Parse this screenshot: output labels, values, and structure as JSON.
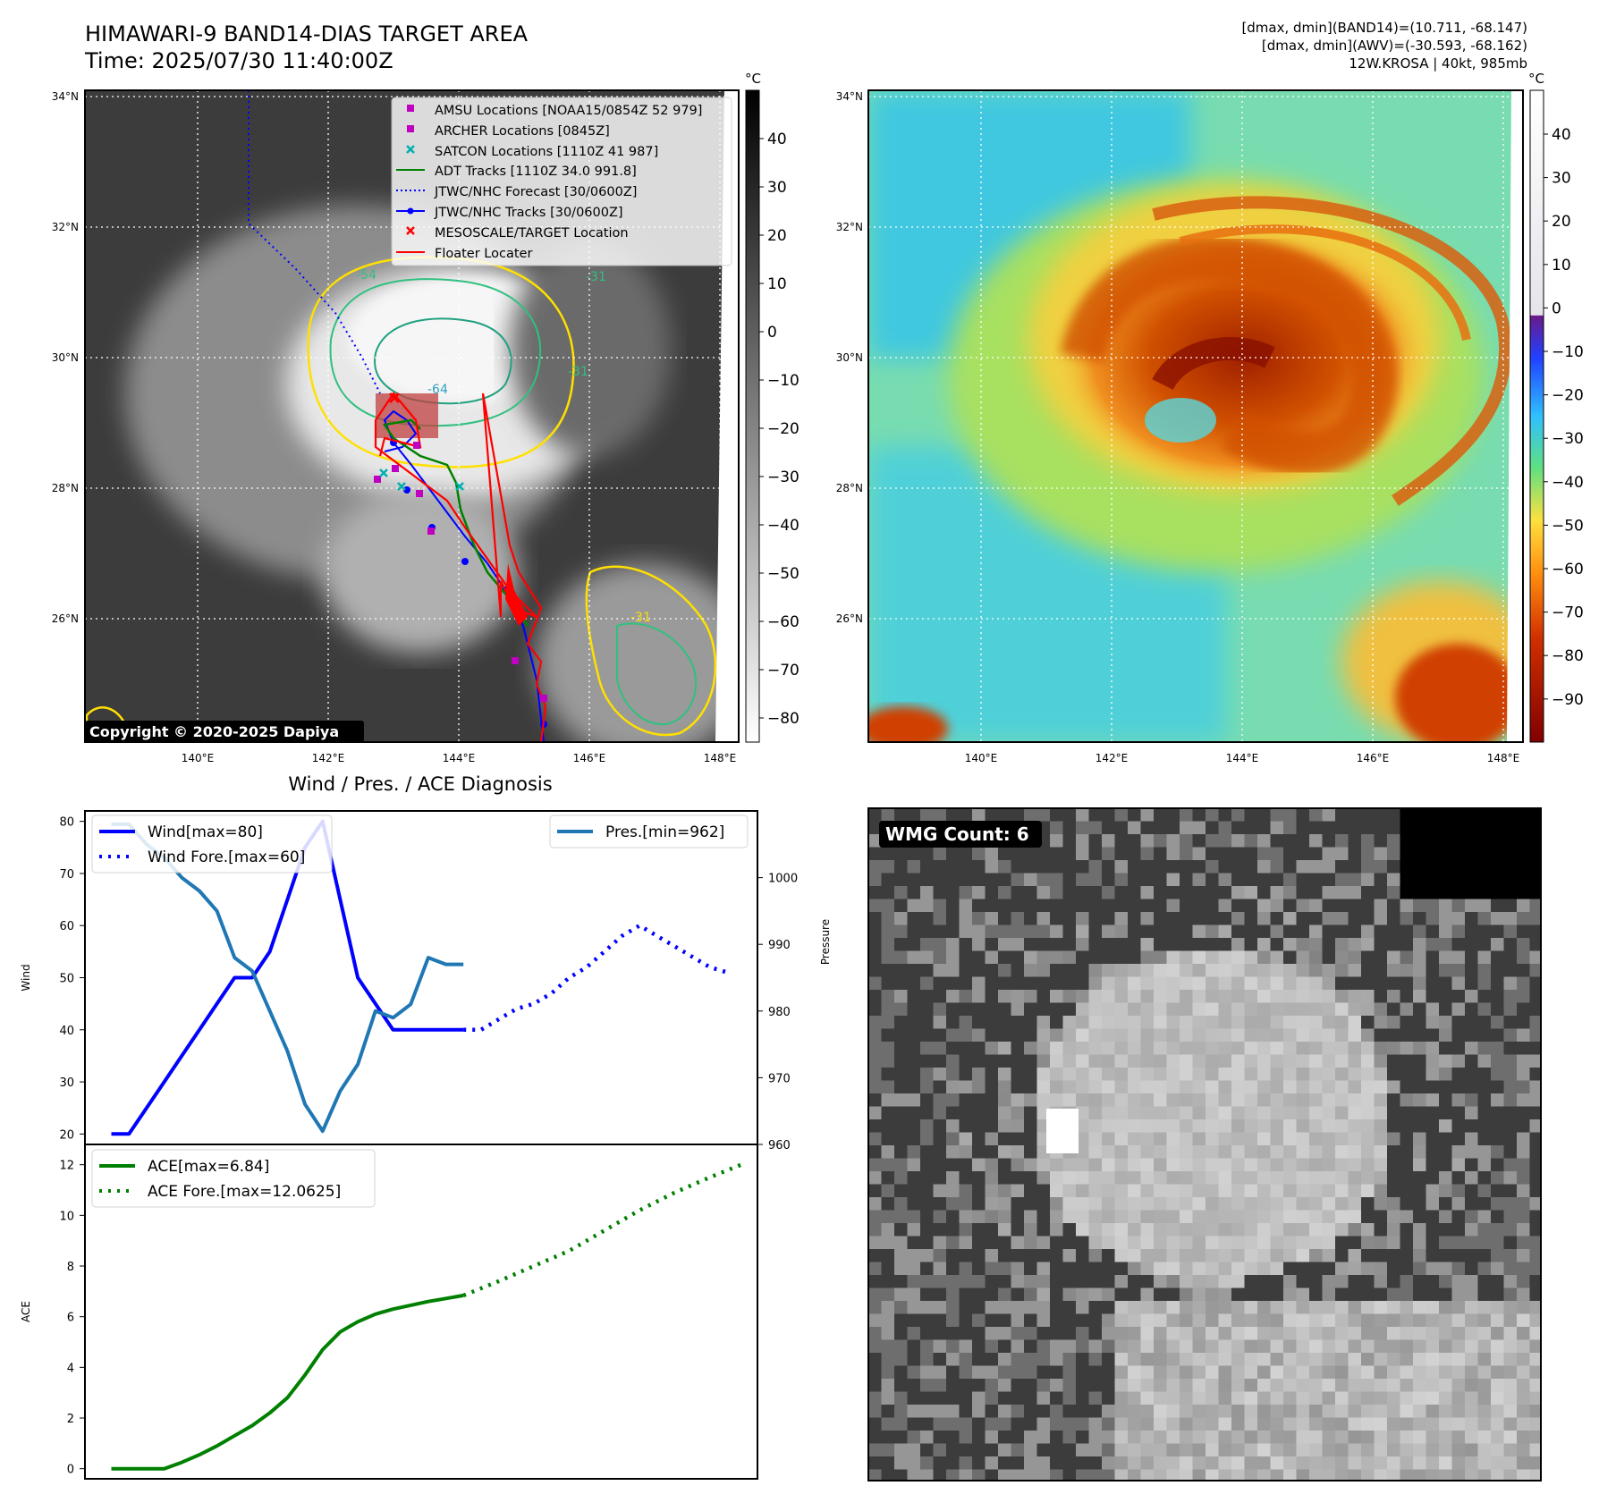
{
  "header": {
    "title_line1": "HIMAWARI-9 BAND14-DIAS TARGET AREA",
    "title_line2": "Time: 2025/07/30 11:40:00Z",
    "stats_line1": "[dmax, dmin](BAND14)=(10.711, -68.147)",
    "stats_line2": "[dmax, dmin](AWV)=(-30.593, -68.162)",
    "stats_line3": "12W.KROSA | 40kt, 985mb"
  },
  "maps": {
    "lat_labels": [
      "34°N",
      "32°N",
      "30°N",
      "28°N",
      "26°N"
    ],
    "lon_labels": [
      "140°E",
      "142°E",
      "144°E",
      "146°E",
      "148°E"
    ],
    "unit": "°C",
    "colorbar1_ticks": [
      "40",
      "30",
      "20",
      "10",
      "0",
      "−10",
      "−20",
      "−30",
      "−40",
      "−50",
      "−60",
      "−70",
      "−80"
    ],
    "colorbar2_ticks": [
      "40",
      "30",
      "20",
      "10",
      "0",
      "−10",
      "−20",
      "−30",
      "−40",
      "−50",
      "−60",
      "−70",
      "−80",
      "−90"
    ],
    "copyright": "Copyright © 2020-2025 Dapiya",
    "legend": [
      {
        "label": "AMSU Locations [NOAA15/0854Z 52 979]",
        "color": "#c000c0",
        "marker": "square"
      },
      {
        "label": "ARCHER Locations [0845Z]",
        "color": "#c000c0",
        "marker": "square"
      },
      {
        "label": "SATCON Locations [1110Z 41 987]",
        "color": "#00b0b0",
        "marker": "x"
      },
      {
        "label": "ADT Tracks [1110Z 34.0 991.8]",
        "color": "#008000",
        "marker": "line"
      },
      {
        "label": "JTWC/NHC Forecast [30/0600Z]",
        "color": "#0000ff",
        "marker": "dotted"
      },
      {
        "label": "JTWC/NHC Tracks [30/0600Z]",
        "color": "#0000ff",
        "marker": "line-dot"
      },
      {
        "label": "MESOSCALE/TARGET Location",
        "color": "#ff0000",
        "marker": "x"
      },
      {
        "label": "Floater Locater",
        "color": "#ff0000",
        "marker": "line"
      }
    ],
    "contour_labels": [
      "-54",
      "-31",
      "-64",
      "-31",
      "-31"
    ],
    "colors": {
      "track_red": "#ff0000",
      "track_blue": "#0000ff",
      "track_green": "#008000",
      "contour_yellow": "#ffe000"
    }
  },
  "panel_wmg": {
    "label": "WMG Count: 6"
  },
  "chart_data": [
    {
      "type": "line",
      "title": "Wind / Pres. / ACE Diagnosis",
      "ylabel": "Wind",
      "y2label": "Pressure",
      "ylim": [
        18,
        82
      ],
      "y2lim": [
        960,
        1010
      ],
      "yticks": [
        20,
        30,
        40,
        50,
        60,
        70,
        80
      ],
      "y2ticks": [
        960,
        970,
        980,
        990,
        1000
      ],
      "series": [
        {
          "name": "Wind[max=80]",
          "style": "solid",
          "color": "#0000ff",
          "axis": "left",
          "x": [
            0,
            1,
            2,
            3,
            4,
            5,
            6,
            7,
            8,
            9,
            10,
            11,
            12,
            13,
            14,
            15,
            16,
            17,
            18,
            19,
            20
          ],
          "values": [
            20,
            20,
            25,
            30,
            35,
            40,
            45,
            50,
            50,
            55,
            65,
            75,
            80,
            65,
            50,
            45,
            40,
            40,
            40,
            40,
            40
          ]
        },
        {
          "name": "Wind Fore.[max=60]",
          "style": "dotted",
          "color": "#0000ff",
          "axis": "left",
          "x": [
            20,
            21,
            22,
            23,
            24,
            25,
            26,
            27,
            28,
            29,
            30,
            31,
            32,
            33,
            34,
            35
          ],
          "values": [
            40,
            40,
            42,
            44,
            45,
            47,
            50,
            52,
            55,
            58,
            60,
            58,
            56,
            54,
            52,
            51
          ]
        },
        {
          "name": "Pres.[min=962]",
          "style": "solid",
          "color": "#1f77b4",
          "axis": "right",
          "x": [
            0,
            1,
            2,
            3,
            4,
            5,
            6,
            7,
            8,
            9,
            10,
            11,
            12,
            13,
            14,
            15,
            16,
            17,
            18,
            19,
            20
          ],
          "values": [
            1008,
            1008,
            1005,
            1003,
            1000,
            998,
            995,
            988,
            986,
            980,
            974,
            966,
            962,
            968,
            972,
            980,
            979,
            981,
            988,
            987,
            987
          ]
        }
      ]
    },
    {
      "type": "line",
      "ylabel": "ACE",
      "ylim": [
        -0.4,
        12.8
      ],
      "yticks": [
        0,
        2,
        4,
        6,
        8,
        10,
        12
      ],
      "series": [
        {
          "name": "ACE[max=6.84]",
          "style": "solid",
          "color": "#008000",
          "x": [
            0,
            1,
            2,
            3,
            4,
            5,
            6,
            7,
            8,
            9,
            10,
            11,
            12,
            13,
            14,
            15,
            16,
            17,
            18,
            19,
            20
          ],
          "values": [
            0,
            0,
            0,
            0,
            0.25,
            0.55,
            0.9,
            1.3,
            1.7,
            2.2,
            2.8,
            3.7,
            4.7,
            5.4,
            5.8,
            6.1,
            6.3,
            6.45,
            6.6,
            6.72,
            6.84
          ]
        },
        {
          "name": "ACE Fore.[max=12.0625]",
          "style": "dotted",
          "color": "#008000",
          "x": [
            20,
            22,
            24,
            26,
            28,
            30,
            32,
            34,
            36
          ],
          "values": [
            6.84,
            7.4,
            8.0,
            8.6,
            9.4,
            10.2,
            10.9,
            11.5,
            12.0625
          ]
        }
      ]
    }
  ]
}
